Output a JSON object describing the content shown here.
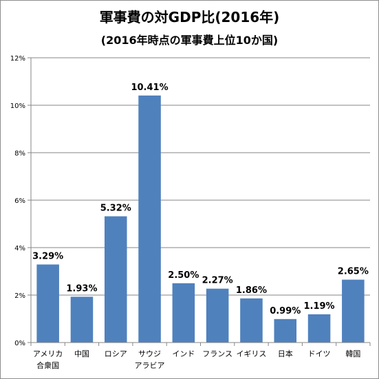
{
  "chart_data": {
    "type": "bar",
    "title": "軍事費の対GDP比(2016年)",
    "subtitle": "(2016年時点の軍事費上位10か国)",
    "categories": [
      [
        "アメリカ",
        "合衆国"
      ],
      [
        "中国"
      ],
      [
        "ロシア"
      ],
      [
        "サウジ",
        "アラビア"
      ],
      [
        "インド"
      ],
      [
        "フランス"
      ],
      [
        "イギリス"
      ],
      [
        "日本"
      ],
      [
        "ドイツ"
      ],
      [
        "韓国"
      ]
    ],
    "values": [
      3.29,
      1.93,
      5.32,
      10.41,
      2.5,
      2.27,
      1.86,
      0.99,
      1.19,
      2.65
    ],
    "data_labels": [
      "3.29%",
      "1.93%",
      "5.32%",
      "10.41%",
      "2.50%",
      "2.27%",
      "1.86%",
      "0.99%",
      "1.19%",
      "2.65%"
    ],
    "y_ticks": [
      0,
      2,
      4,
      6,
      8,
      10,
      12
    ],
    "y_tick_labels": [
      "0%",
      "2%",
      "4%",
      "6%",
      "8%",
      "10%",
      "12%"
    ],
    "ylim": [
      0,
      12
    ],
    "grid": true,
    "bar_color": "#4f81bd",
    "xlabel": "",
    "ylabel": ""
  }
}
